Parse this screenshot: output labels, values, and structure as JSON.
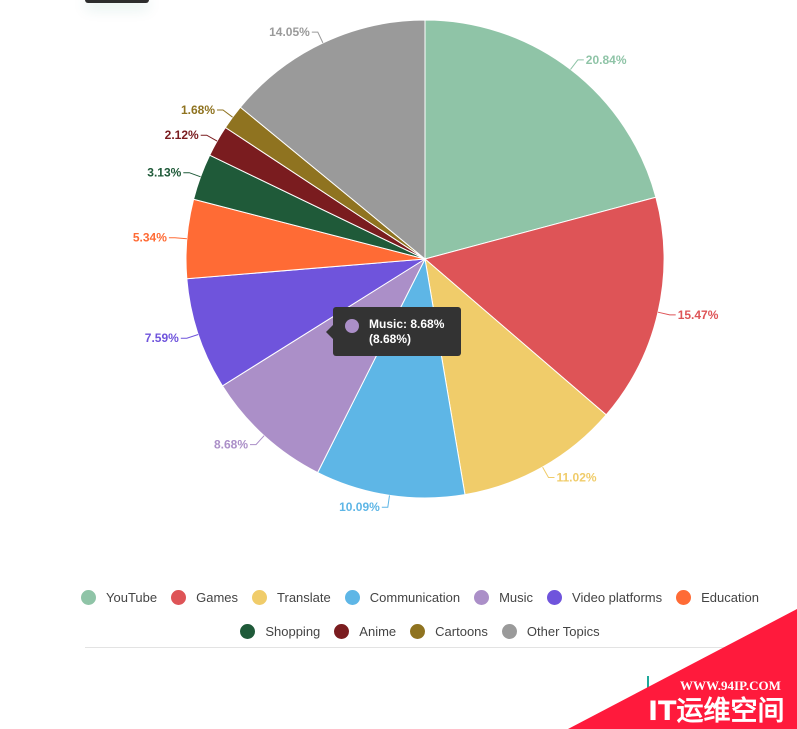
{
  "chart_data": {
    "type": "pie",
    "series": [
      {
        "name": "YouTube",
        "value": 20.84,
        "color": "#8fc4a7"
      },
      {
        "name": "Games",
        "value": 15.47,
        "color": "#de5457"
      },
      {
        "name": "Translate",
        "value": 11.02,
        "color": "#f0cc6a"
      },
      {
        "name": "Communication",
        "value": 10.09,
        "color": "#5eb6e6"
      },
      {
        "name": "Music",
        "value": 8.68,
        "color": "#ab8fc8"
      },
      {
        "name": "Video platforms",
        "value": 7.59,
        "color": "#6f54dc"
      },
      {
        "name": "Education",
        "value": 5.34,
        "color": "#ff6b35"
      },
      {
        "name": "Shopping",
        "value": 3.13,
        "color": "#1f5a39"
      },
      {
        "name": "Anime",
        "value": 2.12,
        "color": "#7a1c1f"
      },
      {
        "name": "Cartoons",
        "value": 1.68,
        "color": "#8f7320"
      },
      {
        "name": "Other Topics",
        "value": 14.05,
        "color": "#9a9a9a"
      }
    ],
    "label_format": "{value}%",
    "legend_placement": "bottom",
    "tooltip": {
      "line1": "Music: 8.68%",
      "line2": "(8.68%)",
      "color": "#ab8fc8"
    }
  },
  "watermark": {
    "line1": "WWW.94IP.COM",
    "line2": "IT运维空间",
    "color": "#ff1a3c"
  }
}
